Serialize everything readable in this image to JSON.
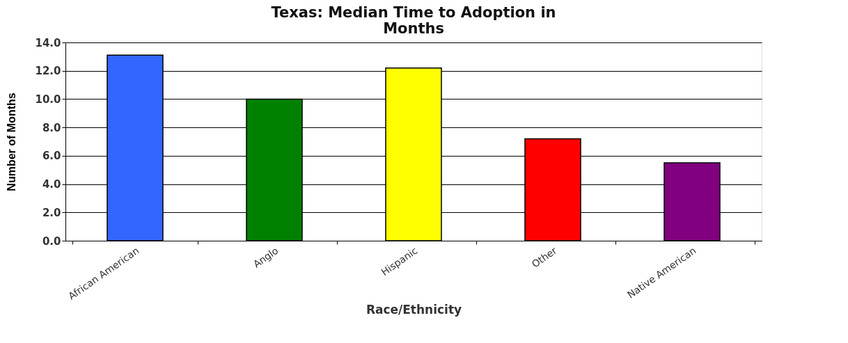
{
  "chart_data": {
    "type": "bar",
    "title": "Texas:  Median Time to Adoption in Months",
    "xlabel": "Race/Ethnicity",
    "ylabel": "Number of Months",
    "categories": [
      "African American",
      "Anglo",
      "Hispanic",
      "Other",
      "Native American"
    ],
    "values": [
      13.1,
      10.0,
      12.2,
      7.2,
      5.5
    ],
    "colors": [
      "#3366ff",
      "#008000",
      "#ffff00",
      "#ff0000",
      "#800080"
    ],
    "ylim": [
      0,
      14
    ],
    "yticks": [
      {
        "value": 0,
        "label": "0.0"
      },
      {
        "value": 2,
        "label": "2.0"
      },
      {
        "value": 4,
        "label": "4.0"
      },
      {
        "value": 6,
        "label": "6.0"
      },
      {
        "value": 8,
        "label": "8.0"
      },
      {
        "value": 10,
        "label": "10.0"
      },
      {
        "value": 12,
        "label": "12.0"
      },
      {
        "value": 14,
        "label": "14.0"
      }
    ],
    "grid": "y"
  }
}
